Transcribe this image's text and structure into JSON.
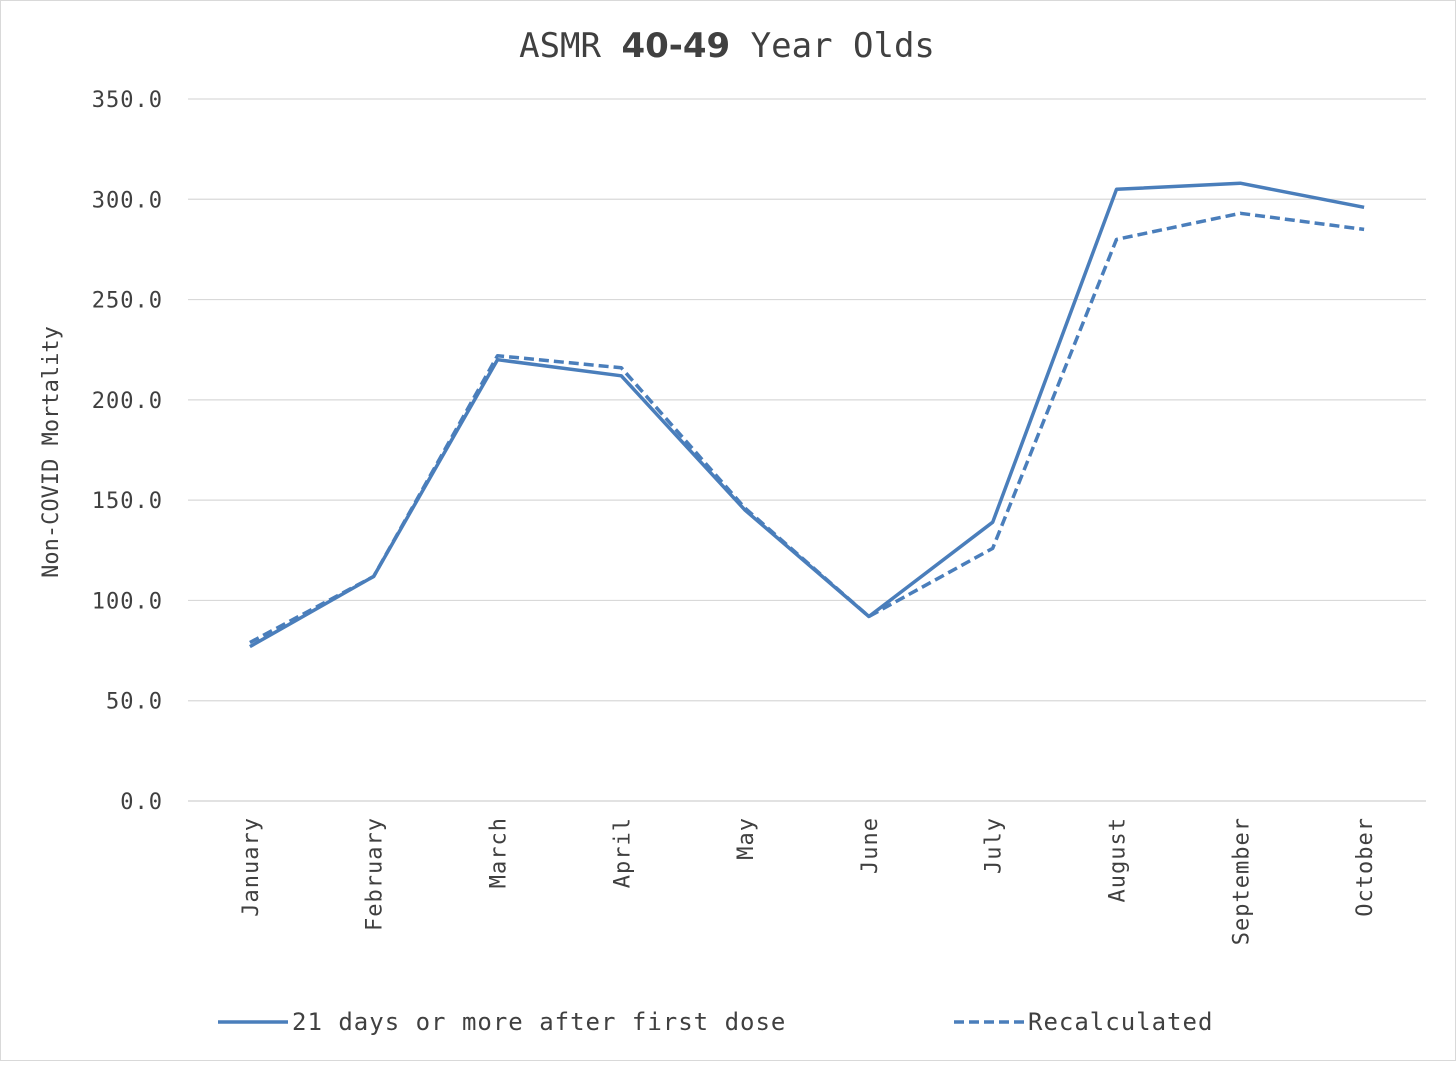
{
  "chart_data": {
    "type": "line",
    "title_parts": [
      "ASMR ",
      "40-49",
      " Year Olds"
    ],
    "title": "ASMR 40-49 Year Olds",
    "xlabel": "",
    "ylabel": "Non-COVID Mortality",
    "ylim": [
      0,
      350
    ],
    "yticks": [
      0,
      50,
      100,
      150,
      200,
      250,
      300,
      350
    ],
    "ytick_labels": [
      "0.0",
      "50.0",
      "100.0",
      "150.0",
      "200.0",
      "250.0",
      "300.0",
      "350.0"
    ],
    "categories": [
      "January",
      "February",
      "March",
      "April",
      "May",
      "June",
      "July",
      "August",
      "September",
      "October"
    ],
    "grid": true,
    "legend_position": "bottom",
    "series": [
      {
        "name": "21 days or more after first dose",
        "style": "solid",
        "color": "#4a7ebb",
        "values": [
          77,
          112,
          220,
          212,
          145,
          92,
          139,
          305,
          308,
          296
        ]
      },
      {
        "name": "Recalculated",
        "style": "dashed",
        "color": "#4a7ebb",
        "values": [
          79,
          112,
          222,
          216,
          146,
          92,
          126,
          280,
          293,
          285
        ]
      }
    ]
  }
}
